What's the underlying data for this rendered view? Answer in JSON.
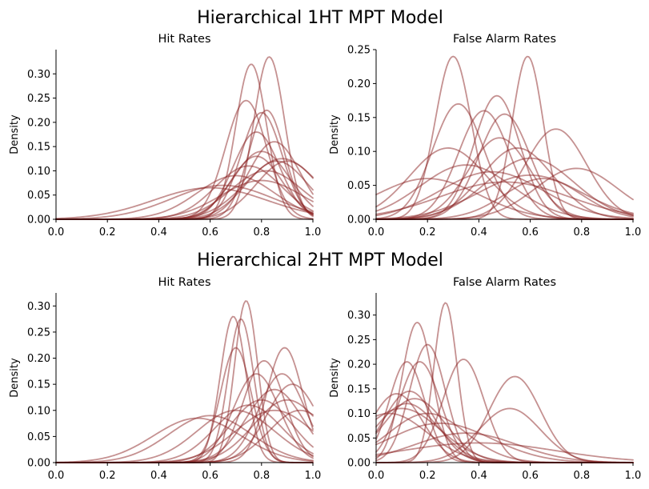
{
  "figure": {
    "rows": [
      {
        "title": "Hierarchical 1HT MPT Model"
      },
      {
        "title": "Hierarchical 2HT MPT Model"
      }
    ]
  },
  "style": {
    "curve_color": "#8b2323",
    "curve_opacity": 0.5
  },
  "chart_data": [
    {
      "type": "line",
      "title": "Hit Rates",
      "xlabel": "",
      "ylabel": "Density",
      "xlim": [
        0,
        1
      ],
      "ylim": [
        0,
        0.35
      ],
      "xticks": [
        "0.0",
        "0.2",
        "0.4",
        "0.6",
        "0.8",
        "1.0"
      ],
      "yticks": [
        "0.00",
        "0.05",
        "0.10",
        "0.15",
        "0.20",
        "0.25",
        "0.30"
      ],
      "series": [
        {
          "mu": 0.76,
          "sd": 0.06,
          "peak": 0.32
        },
        {
          "mu": 0.83,
          "sd": 0.06,
          "peak": 0.335
        },
        {
          "mu": 0.74,
          "sd": 0.08,
          "peak": 0.245
        },
        {
          "mu": 0.8,
          "sd": 0.08,
          "peak": 0.22
        },
        {
          "mu": 0.82,
          "sd": 0.07,
          "peak": 0.225
        },
        {
          "mu": 0.78,
          "sd": 0.09,
          "peak": 0.18
        },
        {
          "mu": 0.85,
          "sd": 0.1,
          "peak": 0.16
        },
        {
          "mu": 0.8,
          "sd": 0.11,
          "peak": 0.14
        },
        {
          "mu": 0.86,
          "sd": 0.12,
          "peak": 0.12
        },
        {
          "mu": 0.9,
          "sd": 0.12,
          "peak": 0.12
        },
        {
          "mu": 0.75,
          "sd": 0.13,
          "peak": 0.11
        },
        {
          "mu": 0.82,
          "sd": 0.14,
          "peak": 0.1
        },
        {
          "mu": 0.7,
          "sd": 0.15,
          "peak": 0.09
        },
        {
          "mu": 0.88,
          "sd": 0.14,
          "peak": 0.125
        },
        {
          "mu": 0.65,
          "sd": 0.2,
          "peak": 0.07
        },
        {
          "mu": 0.6,
          "sd": 0.22,
          "peak": 0.065
        },
        {
          "mu": 0.8,
          "sd": 0.16,
          "peak": 0.08
        },
        {
          "mu": 0.78,
          "sd": 0.1,
          "peak": 0.13
        }
      ]
    },
    {
      "type": "line",
      "title": "False Alarm Rates",
      "xlabel": "",
      "ylabel": "Density",
      "xlim": [
        0,
        1
      ],
      "ylim": [
        0,
        0.25
      ],
      "xticks": [
        "0.0",
        "0.2",
        "0.4",
        "0.6",
        "0.8",
        "1.0"
      ],
      "yticks": [
        "0.00",
        "0.05",
        "0.10",
        "0.15",
        "0.20",
        "0.25"
      ],
      "series": [
        {
          "mu": 0.3,
          "sd": 0.07,
          "peak": 0.24
        },
        {
          "mu": 0.59,
          "sd": 0.06,
          "peak": 0.24
        },
        {
          "mu": 0.47,
          "sd": 0.09,
          "peak": 0.182
        },
        {
          "mu": 0.32,
          "sd": 0.1,
          "peak": 0.17
        },
        {
          "mu": 0.42,
          "sd": 0.1,
          "peak": 0.16
        },
        {
          "mu": 0.5,
          "sd": 0.1,
          "peak": 0.155
        },
        {
          "mu": 0.7,
          "sd": 0.12,
          "peak": 0.133
        },
        {
          "mu": 0.48,
          "sd": 0.12,
          "peak": 0.12
        },
        {
          "mu": 0.55,
          "sd": 0.14,
          "peak": 0.105
        },
        {
          "mu": 0.28,
          "sd": 0.15,
          "peak": 0.105
        },
        {
          "mu": 0.6,
          "sd": 0.17,
          "peak": 0.09
        },
        {
          "mu": 0.35,
          "sd": 0.18,
          "peak": 0.08
        },
        {
          "mu": 0.78,
          "sd": 0.16,
          "peak": 0.075
        },
        {
          "mu": 0.45,
          "sd": 0.2,
          "peak": 0.07
        },
        {
          "mu": 0.6,
          "sd": 0.2,
          "peak": 0.065
        },
        {
          "mu": 0.5,
          "sd": 0.25,
          "peak": 0.055
        },
        {
          "mu": 0.2,
          "sd": 0.2,
          "peak": 0.06
        },
        {
          "mu": 0.65,
          "sd": 0.15,
          "peak": 0.06
        }
      ]
    },
    {
      "type": "line",
      "title": "Hit Rates",
      "xlabel": "",
      "ylabel": "Density",
      "xlim": [
        0,
        1
      ],
      "ylim": [
        0,
        0.325
      ],
      "xticks": [
        "0.0",
        "0.2",
        "0.4",
        "0.6",
        "0.8",
        "1.0"
      ],
      "yticks": [
        "0.00",
        "0.05",
        "0.10",
        "0.15",
        "0.20",
        "0.25",
        "0.30"
      ],
      "series": [
        {
          "mu": 0.74,
          "sd": 0.045,
          "peak": 0.31
        },
        {
          "mu": 0.69,
          "sd": 0.05,
          "peak": 0.28
        },
        {
          "mu": 0.72,
          "sd": 0.05,
          "peak": 0.275
        },
        {
          "mu": 0.7,
          "sd": 0.06,
          "peak": 0.22
        },
        {
          "mu": 0.89,
          "sd": 0.07,
          "peak": 0.22
        },
        {
          "mu": 0.81,
          "sd": 0.08,
          "peak": 0.195
        },
        {
          "mu": 0.78,
          "sd": 0.09,
          "peak": 0.17
        },
        {
          "mu": 0.88,
          "sd": 0.09,
          "peak": 0.17
        },
        {
          "mu": 0.92,
          "sd": 0.1,
          "peak": 0.15
        },
        {
          "mu": 0.85,
          "sd": 0.11,
          "peak": 0.14
        },
        {
          "mu": 0.8,
          "sd": 0.12,
          "peak": 0.12
        },
        {
          "mu": 0.75,
          "sd": 0.13,
          "peak": 0.11
        },
        {
          "mu": 0.9,
          "sd": 0.13,
          "peak": 0.12
        },
        {
          "mu": 0.7,
          "sd": 0.15,
          "peak": 0.1
        },
        {
          "mu": 0.6,
          "sd": 0.16,
          "peak": 0.09
        },
        {
          "mu": 0.55,
          "sd": 0.17,
          "peak": 0.085
        },
        {
          "mu": 0.85,
          "sd": 0.15,
          "peak": 0.1
        },
        {
          "mu": 0.95,
          "sd": 0.12,
          "peak": 0.1
        }
      ]
    },
    {
      "type": "line",
      "title": "False Alarm Rates",
      "xlabel": "",
      "ylabel": "Density",
      "xlim": [
        0,
        1
      ],
      "ylim": [
        0,
        0.345
      ],
      "xticks": [
        "0.0",
        "0.2",
        "0.4",
        "0.6",
        "0.8",
        "1.0"
      ],
      "yticks": [
        "0.00",
        "0.05",
        "0.10",
        "0.15",
        "0.20",
        "0.25",
        "0.30"
      ],
      "series": [
        {
          "mu": 0.27,
          "sd": 0.045,
          "peak": 0.325
        },
        {
          "mu": 0.16,
          "sd": 0.06,
          "peak": 0.285
        },
        {
          "mu": 0.2,
          "sd": 0.07,
          "peak": 0.24
        },
        {
          "mu": 0.17,
          "sd": 0.08,
          "peak": 0.205
        },
        {
          "mu": 0.12,
          "sd": 0.07,
          "peak": 0.205
        },
        {
          "mu": 0.34,
          "sd": 0.08,
          "peak": 0.21
        },
        {
          "mu": 0.54,
          "sd": 0.1,
          "peak": 0.175
        },
        {
          "mu": 0.13,
          "sd": 0.1,
          "peak": 0.145
        },
        {
          "mu": 0.15,
          "sd": 0.12,
          "peak": 0.13
        },
        {
          "mu": 0.08,
          "sd": 0.1,
          "peak": 0.14
        },
        {
          "mu": 0.1,
          "sd": 0.15,
          "peak": 0.11
        },
        {
          "mu": 0.52,
          "sd": 0.12,
          "peak": 0.11
        },
        {
          "mu": 0.2,
          "sd": 0.15,
          "peak": 0.1
        },
        {
          "mu": 0.25,
          "sd": 0.2,
          "peak": 0.08
        },
        {
          "mu": 0.05,
          "sd": 0.15,
          "peak": 0.1
        },
        {
          "mu": 0.35,
          "sd": 0.2,
          "peak": 0.06
        },
        {
          "mu": 0.4,
          "sd": 0.3,
          "peak": 0.04
        },
        {
          "mu": 0.12,
          "sd": 0.12,
          "peak": 0.12
        }
      ]
    }
  ]
}
